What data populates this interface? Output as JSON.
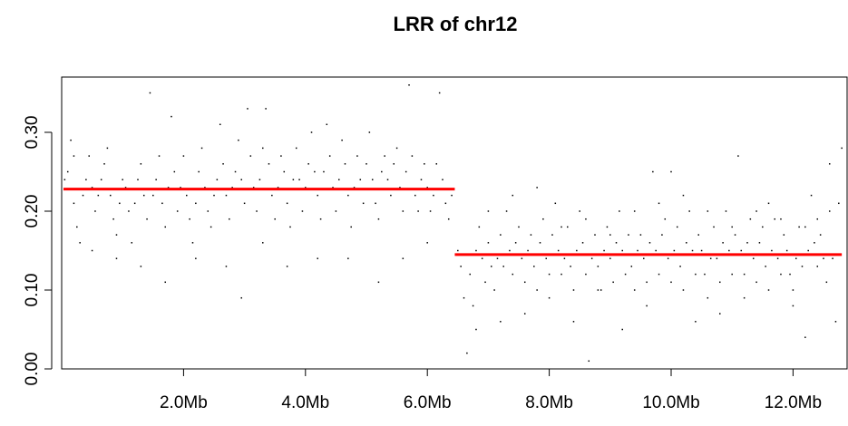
{
  "chart_data": {
    "type": "scatter",
    "title": "LRR of chr12",
    "xlabel": "",
    "ylabel": "",
    "xlim": [
      0.0,
      12.8
    ],
    "ylim": [
      0.0,
      0.36
    ],
    "x_ticks": [
      2,
      4,
      6,
      8,
      10,
      12
    ],
    "x_tick_labels": [
      "2.0Mb",
      "4.0Mb",
      "6.0Mb",
      "8.0Mb",
      "10.0Mb",
      "12.0Mb"
    ],
    "y_ticks": [
      0.0,
      0.1,
      0.2,
      0.3
    ],
    "y_tick_labels": [
      "0.00",
      "0.10",
      "0.20",
      "0.30"
    ],
    "grid": false,
    "point_color": "#000000",
    "segment_color": "#ff0000",
    "segments": [
      {
        "x_start": 0.0,
        "x_end": 6.45,
        "y": 0.228
      },
      {
        "x_start": 6.45,
        "x_end": 12.8,
        "y": 0.145
      }
    ],
    "points": [
      [
        0.05,
        0.24
      ],
      [
        0.1,
        0.25
      ],
      [
        0.15,
        0.29
      ],
      [
        0.2,
        0.21
      ],
      [
        0.25,
        0.18
      ],
      [
        0.3,
        0.16
      ],
      [
        0.35,
        0.22
      ],
      [
        0.4,
        0.24
      ],
      [
        0.45,
        0.27
      ],
      [
        0.5,
        0.23
      ],
      [
        0.55,
        0.2
      ],
      [
        0.6,
        0.22
      ],
      [
        0.65,
        0.24
      ],
      [
        0.7,
        0.26
      ],
      [
        0.75,
        0.28
      ],
      [
        0.8,
        0.22
      ],
      [
        0.85,
        0.19
      ],
      [
        0.9,
        0.17
      ],
      [
        0.95,
        0.21
      ],
      [
        1.0,
        0.24
      ],
      [
        1.05,
        0.23
      ],
      [
        1.1,
        0.2
      ],
      [
        1.15,
        0.16
      ],
      [
        1.2,
        0.21
      ],
      [
        1.25,
        0.24
      ],
      [
        1.3,
        0.26
      ],
      [
        1.35,
        0.22
      ],
      [
        1.4,
        0.19
      ],
      [
        1.45,
        0.35
      ],
      [
        1.5,
        0.22
      ],
      [
        1.55,
        0.24
      ],
      [
        1.6,
        0.27
      ],
      [
        1.65,
        0.21
      ],
      [
        1.7,
        0.18
      ],
      [
        1.75,
        0.23
      ],
      [
        1.8,
        0.32
      ],
      [
        1.85,
        0.25
      ],
      [
        1.9,
        0.2
      ],
      [
        1.95,
        0.23
      ],
      [
        2.0,
        0.27
      ],
      [
        2.05,
        0.22
      ],
      [
        2.1,
        0.19
      ],
      [
        2.15,
        0.16
      ],
      [
        2.2,
        0.21
      ],
      [
        2.25,
        0.25
      ],
      [
        2.3,
        0.28
      ],
      [
        2.35,
        0.23
      ],
      [
        2.4,
        0.2
      ],
      [
        2.45,
        0.18
      ],
      [
        2.5,
        0.22
      ],
      [
        2.55,
        0.24
      ],
      [
        2.6,
        0.31
      ],
      [
        2.65,
        0.26
      ],
      [
        2.7,
        0.22
      ],
      [
        2.75,
        0.19
      ],
      [
        2.8,
        0.23
      ],
      [
        2.85,
        0.25
      ],
      [
        2.9,
        0.29
      ],
      [
        2.95,
        0.24
      ],
      [
        3.0,
        0.21
      ],
      [
        3.05,
        0.33
      ],
      [
        3.1,
        0.27
      ],
      [
        3.15,
        0.23
      ],
      [
        3.2,
        0.2
      ],
      [
        3.25,
        0.24
      ],
      [
        3.3,
        0.28
      ],
      [
        3.35,
        0.33
      ],
      [
        3.4,
        0.26
      ],
      [
        3.45,
        0.22
      ],
      [
        3.5,
        0.19
      ],
      [
        3.55,
        0.23
      ],
      [
        3.6,
        0.27
      ],
      [
        3.65,
        0.25
      ],
      [
        3.7,
        0.21
      ],
      [
        3.75,
        0.18
      ],
      [
        3.8,
        0.24
      ],
      [
        3.85,
        0.28
      ],
      [
        3.9,
        0.24
      ],
      [
        3.95,
        0.2
      ],
      [
        4.0,
        0.23
      ],
      [
        4.05,
        0.26
      ],
      [
        4.1,
        0.3
      ],
      [
        4.15,
        0.25
      ],
      [
        4.2,
        0.22
      ],
      [
        4.25,
        0.19
      ],
      [
        4.3,
        0.25
      ],
      [
        4.35,
        0.31
      ],
      [
        4.4,
        0.27
      ],
      [
        4.45,
        0.23
      ],
      [
        4.5,
        0.2
      ],
      [
        4.55,
        0.24
      ],
      [
        4.6,
        0.29
      ],
      [
        4.65,
        0.26
      ],
      [
        4.7,
        0.22
      ],
      [
        4.75,
        0.18
      ],
      [
        4.8,
        0.23
      ],
      [
        4.85,
        0.27
      ],
      [
        4.9,
        0.24
      ],
      [
        4.95,
        0.21
      ],
      [
        5.0,
        0.26
      ],
      [
        5.05,
        0.3
      ],
      [
        5.1,
        0.24
      ],
      [
        5.15,
        0.21
      ],
      [
        5.2,
        0.19
      ],
      [
        5.25,
        0.25
      ],
      [
        5.3,
        0.27
      ],
      [
        5.35,
        0.24
      ],
      [
        5.4,
        0.22
      ],
      [
        5.45,
        0.26
      ],
      [
        5.5,
        0.28
      ],
      [
        5.55,
        0.23
      ],
      [
        5.6,
        0.2
      ],
      [
        5.65,
        0.25
      ],
      [
        5.7,
        0.36
      ],
      [
        5.75,
        0.27
      ],
      [
        5.8,
        0.22
      ],
      [
        5.85,
        0.2
      ],
      [
        5.9,
        0.24
      ],
      [
        5.95,
        0.26
      ],
      [
        6.0,
        0.23
      ],
      [
        6.05,
        0.2
      ],
      [
        6.1,
        0.22
      ],
      [
        6.15,
        0.26
      ],
      [
        6.2,
        0.35
      ],
      [
        6.25,
        0.24
      ],
      [
        6.3,
        0.21
      ],
      [
        6.35,
        0.19
      ],
      [
        6.4,
        0.22
      ],
      [
        0.2,
        0.27
      ],
      [
        0.5,
        0.15
      ],
      [
        0.9,
        0.14
      ],
      [
        1.3,
        0.13
      ],
      [
        1.7,
        0.11
      ],
      [
        2.2,
        0.14
      ],
      [
        2.7,
        0.13
      ],
      [
        2.95,
        0.09
      ],
      [
        3.3,
        0.16
      ],
      [
        3.7,
        0.13
      ],
      [
        4.2,
        0.14
      ],
      [
        4.7,
        0.14
      ],
      [
        5.2,
        0.11
      ],
      [
        5.6,
        0.14
      ],
      [
        6.0,
        0.16
      ],
      [
        6.5,
        0.15
      ],
      [
        6.55,
        0.13
      ],
      [
        6.6,
        0.09
      ],
      [
        6.65,
        0.02
      ],
      [
        6.7,
        0.12
      ],
      [
        6.75,
        0.08
      ],
      [
        6.8,
        0.15
      ],
      [
        6.85,
        0.18
      ],
      [
        6.9,
        0.14
      ],
      [
        6.95,
        0.11
      ],
      [
        7.0,
        0.16
      ],
      [
        7.05,
        0.13
      ],
      [
        7.1,
        0.1
      ],
      [
        7.15,
        0.14
      ],
      [
        7.2,
        0.17
      ],
      [
        7.25,
        0.13
      ],
      [
        7.3,
        0.2
      ],
      [
        7.35,
        0.15
      ],
      [
        7.4,
        0.12
      ],
      [
        7.45,
        0.16
      ],
      [
        7.5,
        0.18
      ],
      [
        7.55,
        0.14
      ],
      [
        7.6,
        0.11
      ],
      [
        7.65,
        0.15
      ],
      [
        7.7,
        0.17
      ],
      [
        7.75,
        0.13
      ],
      [
        7.8,
        0.1
      ],
      [
        7.85,
        0.16
      ],
      [
        7.9,
        0.19
      ],
      [
        7.95,
        0.14
      ],
      [
        8.0,
        0.12
      ],
      [
        8.05,
        0.17
      ],
      [
        8.1,
        0.21
      ],
      [
        8.15,
        0.15
      ],
      [
        8.2,
        0.12
      ],
      [
        8.25,
        0.14
      ],
      [
        8.3,
        0.18
      ],
      [
        8.35,
        0.13
      ],
      [
        8.4,
        0.1
      ],
      [
        8.45,
        0.15
      ],
      [
        8.5,
        0.2
      ],
      [
        8.55,
        0.16
      ],
      [
        8.6,
        0.12
      ],
      [
        8.65,
        0.01
      ],
      [
        8.7,
        0.14
      ],
      [
        8.75,
        0.17
      ],
      [
        8.8,
        0.13
      ],
      [
        8.85,
        0.1
      ],
      [
        8.9,
        0.15
      ],
      [
        8.95,
        0.18
      ],
      [
        9.0,
        0.14
      ],
      [
        9.05,
        0.11
      ],
      [
        9.1,
        0.16
      ],
      [
        9.15,
        0.2
      ],
      [
        9.2,
        0.15
      ],
      [
        9.25,
        0.12
      ],
      [
        9.3,
        0.17
      ],
      [
        9.35,
        0.13
      ],
      [
        9.4,
        0.1
      ],
      [
        9.45,
        0.15
      ],
      [
        9.5,
        0.17
      ],
      [
        9.55,
        0.14
      ],
      [
        9.6,
        0.11
      ],
      [
        9.65,
        0.16
      ],
      [
        9.7,
        0.25
      ],
      [
        9.75,
        0.15
      ],
      [
        9.8,
        0.12
      ],
      [
        9.85,
        0.17
      ],
      [
        9.9,
        0.19
      ],
      [
        9.95,
        0.14
      ],
      [
        10.0,
        0.11
      ],
      [
        10.05,
        0.15
      ],
      [
        10.1,
        0.18
      ],
      [
        10.15,
        0.13
      ],
      [
        10.2,
        0.1
      ],
      [
        10.25,
        0.16
      ],
      [
        10.3,
        0.2
      ],
      [
        10.35,
        0.15
      ],
      [
        10.4,
        0.12
      ],
      [
        10.45,
        0.17
      ],
      [
        10.5,
        0.15
      ],
      [
        10.55,
        0.12
      ],
      [
        10.6,
        0.09
      ],
      [
        10.65,
        0.14
      ],
      [
        10.7,
        0.18
      ],
      [
        10.75,
        0.14
      ],
      [
        10.8,
        0.11
      ],
      [
        10.85,
        0.16
      ],
      [
        10.9,
        0.2
      ],
      [
        10.95,
        0.15
      ],
      [
        11.0,
        0.12
      ],
      [
        11.05,
        0.17
      ],
      [
        11.1,
        0.27
      ],
      [
        11.15,
        0.15
      ],
      [
        11.2,
        0.12
      ],
      [
        11.25,
        0.16
      ],
      [
        11.3,
        0.19
      ],
      [
        11.35,
        0.14
      ],
      [
        11.4,
        0.11
      ],
      [
        11.45,
        0.16
      ],
      [
        11.5,
        0.18
      ],
      [
        11.55,
        0.13
      ],
      [
        11.6,
        0.1
      ],
      [
        11.65,
        0.15
      ],
      [
        11.7,
        0.19
      ],
      [
        11.75,
        0.14
      ],
      [
        11.8,
        0.12
      ],
      [
        11.85,
        0.17
      ],
      [
        11.9,
        0.15
      ],
      [
        11.95,
        0.12
      ],
      [
        12.0,
        0.1
      ],
      [
        12.05,
        0.14
      ],
      [
        12.1,
        0.18
      ],
      [
        12.15,
        0.13
      ],
      [
        12.2,
        0.04
      ],
      [
        12.25,
        0.15
      ],
      [
        12.3,
        0.22
      ],
      [
        12.35,
        0.16
      ],
      [
        12.4,
        0.13
      ],
      [
        12.45,
        0.17
      ],
      [
        12.5,
        0.14
      ],
      [
        12.55,
        0.11
      ],
      [
        12.6,
        0.26
      ],
      [
        12.65,
        0.14
      ],
      [
        12.7,
        0.06
      ],
      [
        12.75,
        0.21
      ],
      [
        12.8,
        0.28
      ],
      [
        6.8,
        0.05
      ],
      [
        7.2,
        0.06
      ],
      [
        7.6,
        0.07
      ],
      [
        8.0,
        0.09
      ],
      [
        8.4,
        0.06
      ],
      [
        8.8,
        0.1
      ],
      [
        9.2,
        0.05
      ],
      [
        9.6,
        0.08
      ],
      [
        10.0,
        0.25
      ],
      [
        10.4,
        0.06
      ],
      [
        10.8,
        0.07
      ],
      [
        11.2,
        0.09
      ],
      [
        11.6,
        0.21
      ],
      [
        12.0,
        0.08
      ],
      [
        12.4,
        0.19
      ],
      [
        7.0,
        0.2
      ],
      [
        7.4,
        0.22
      ],
      [
        7.8,
        0.23
      ],
      [
        8.2,
        0.18
      ],
      [
        8.6,
        0.19
      ],
      [
        9.0,
        0.17
      ],
      [
        9.4,
        0.2
      ],
      [
        9.8,
        0.21
      ],
      [
        10.2,
        0.22
      ],
      [
        10.6,
        0.2
      ],
      [
        11.0,
        0.18
      ],
      [
        11.4,
        0.2
      ],
      [
        11.8,
        0.19
      ],
      [
        12.2,
        0.18
      ],
      [
        12.6,
        0.2
      ]
    ]
  }
}
